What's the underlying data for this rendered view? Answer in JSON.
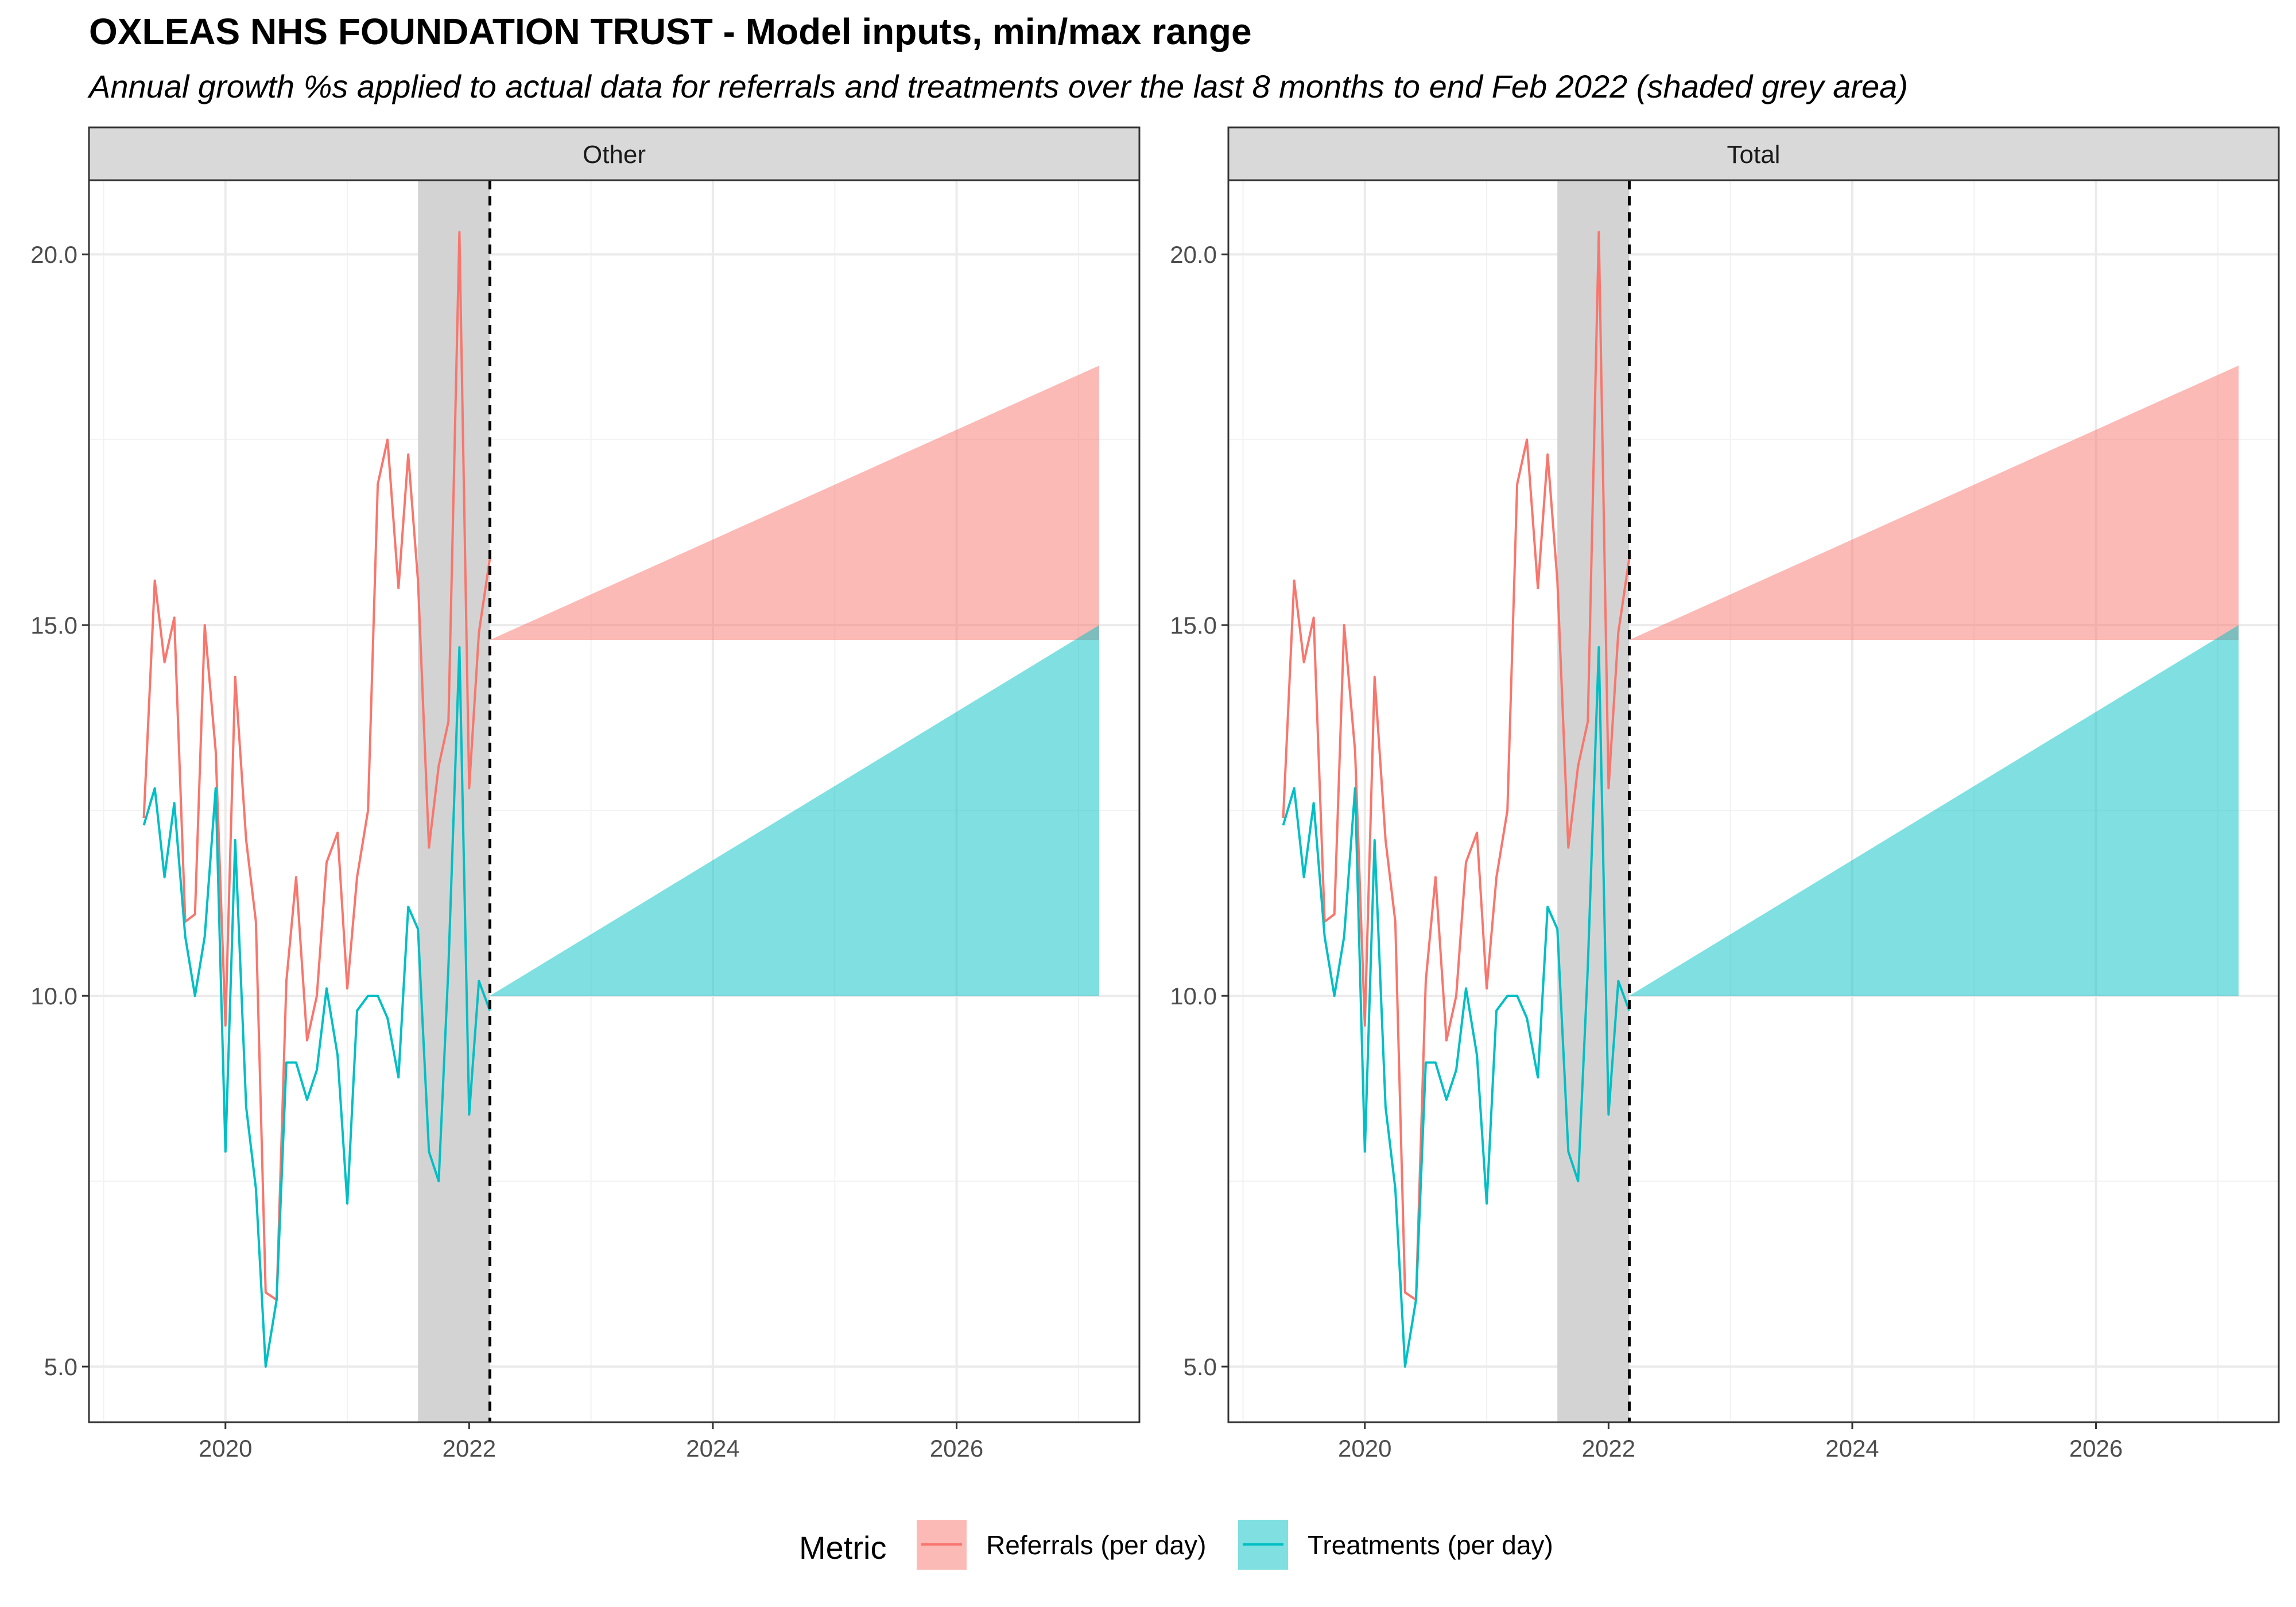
{
  "chart_data": {
    "type": "line",
    "title": "OXLEAS NHS FOUNDATION TRUST - Model inputs, min/max range",
    "subtitle": "Annual growth %s applied to actual data for referrals and treatments over the last 8 months to end Feb 2022 (shaded grey area)",
    "xlim": [
      2018.88,
      2027.5
    ],
    "ylim": [
      4.25,
      21.0
    ],
    "x_ticks": [
      2020,
      2022,
      2024,
      2026
    ],
    "x_tick_labels": [
      "2020",
      "2022",
      "2024",
      "2026"
    ],
    "y_ticks": [
      5,
      10,
      15,
      20
    ],
    "y_tick_labels": [
      "5.0",
      "10.0",
      "15.0",
      "20.0"
    ],
    "grid": true,
    "shaded_period": [
      2021.58,
      2022.17
    ],
    "forecast_start": 2022.17,
    "legend": {
      "title": "Metric",
      "position": "bottom",
      "items": [
        {
          "label": "Referrals (per day)",
          "color": "#F8766D"
        },
        {
          "label": "Treatments (per day)",
          "color": "#00BFC4"
        }
      ]
    },
    "x": [
      2019.33,
      2019.42,
      2019.5,
      2019.58,
      2019.67,
      2019.75,
      2019.83,
      2019.92,
      2020.0,
      2020.08,
      2020.17,
      2020.25,
      2020.33,
      2020.42,
      2020.5,
      2020.58,
      2020.67,
      2020.75,
      2020.83,
      2020.92,
      2021.0,
      2021.08,
      2021.17,
      2021.25,
      2021.33,
      2021.42,
      2021.5,
      2021.58,
      2021.67,
      2021.75,
      2021.83,
      2021.92,
      2022.0,
      2022.08,
      2022.17
    ],
    "panels": [
      {
        "strip_label": "Other",
        "series": [
          {
            "name": "Referrals (per day)",
            "color": "#F8766D",
            "values": [
              12.4,
              15.6,
              14.5,
              15.1,
              11.0,
              11.1,
              15.0,
              13.3,
              9.6,
              14.3,
              12.1,
              11.0,
              6.0,
              5.9,
              10.2,
              11.6,
              9.4,
              10.0,
              11.8,
              12.2,
              10.1,
              11.6,
              12.5,
              16.9,
              17.5,
              15.5,
              17.3,
              15.6,
              12.0,
              13.1,
              13.7,
              20.3,
              12.8,
              14.9,
              15.9
            ]
          },
          {
            "name": "Treatments (per day)",
            "color": "#00BFC4",
            "values": [
              12.3,
              12.8,
              11.6,
              12.6,
              10.8,
              10.0,
              10.8,
              12.8,
              7.9,
              12.1,
              8.5,
              7.4,
              5.0,
              5.9,
              9.1,
              9.1,
              8.6,
              9.0,
              10.1,
              9.2,
              7.2,
              9.8,
              10.0,
              10.0,
              9.7,
              8.9,
              11.2,
              10.9,
              7.9,
              7.5,
              10.4,
              14.7,
              8.4,
              10.2,
              9.8
            ]
          }
        ],
        "ranges": [
          {
            "name": "Referrals (per day)",
            "color": "#F8766D",
            "x": [
              2022.17,
              2027.17
            ],
            "ymin": [
              14.8,
              14.8
            ],
            "ymax": [
              14.8,
              18.5
            ]
          },
          {
            "name": "Treatments (per day)",
            "color": "#00BFC4",
            "x": [
              2022.17,
              2027.17
            ],
            "ymin": [
              10.0,
              10.0
            ],
            "ymax": [
              10.0,
              15.0
            ]
          }
        ]
      },
      {
        "strip_label": "Total",
        "series": [
          {
            "name": "Referrals (per day)",
            "color": "#F8766D",
            "values": [
              12.4,
              15.6,
              14.5,
              15.1,
              11.0,
              11.1,
              15.0,
              13.3,
              9.6,
              14.3,
              12.1,
              11.0,
              6.0,
              5.9,
              10.2,
              11.6,
              9.4,
              10.0,
              11.8,
              12.2,
              10.1,
              11.6,
              12.5,
              16.9,
              17.5,
              15.5,
              17.3,
              15.6,
              12.0,
              13.1,
              13.7,
              20.3,
              12.8,
              14.9,
              15.9
            ]
          },
          {
            "name": "Treatments (per day)",
            "color": "#00BFC4",
            "values": [
              12.3,
              12.8,
              11.6,
              12.6,
              10.8,
              10.0,
              10.8,
              12.8,
              7.9,
              12.1,
              8.5,
              7.4,
              5.0,
              5.9,
              9.1,
              9.1,
              8.6,
              9.0,
              10.1,
              9.2,
              7.2,
              9.8,
              10.0,
              10.0,
              9.7,
              8.9,
              11.2,
              10.9,
              7.9,
              7.5,
              10.4,
              14.7,
              8.4,
              10.2,
              9.8
            ]
          }
        ],
        "ranges": [
          {
            "name": "Referrals (per day)",
            "color": "#F8766D",
            "x": [
              2022.17,
              2027.17
            ],
            "ymin": [
              14.8,
              14.8
            ],
            "ymax": [
              14.8,
              18.5
            ]
          },
          {
            "name": "Treatments (per day)",
            "color": "#00BFC4",
            "x": [
              2022.17,
              2027.17
            ],
            "ymin": [
              10.0,
              10.0
            ],
            "ymax": [
              10.0,
              15.0
            ]
          }
        ]
      }
    ]
  }
}
